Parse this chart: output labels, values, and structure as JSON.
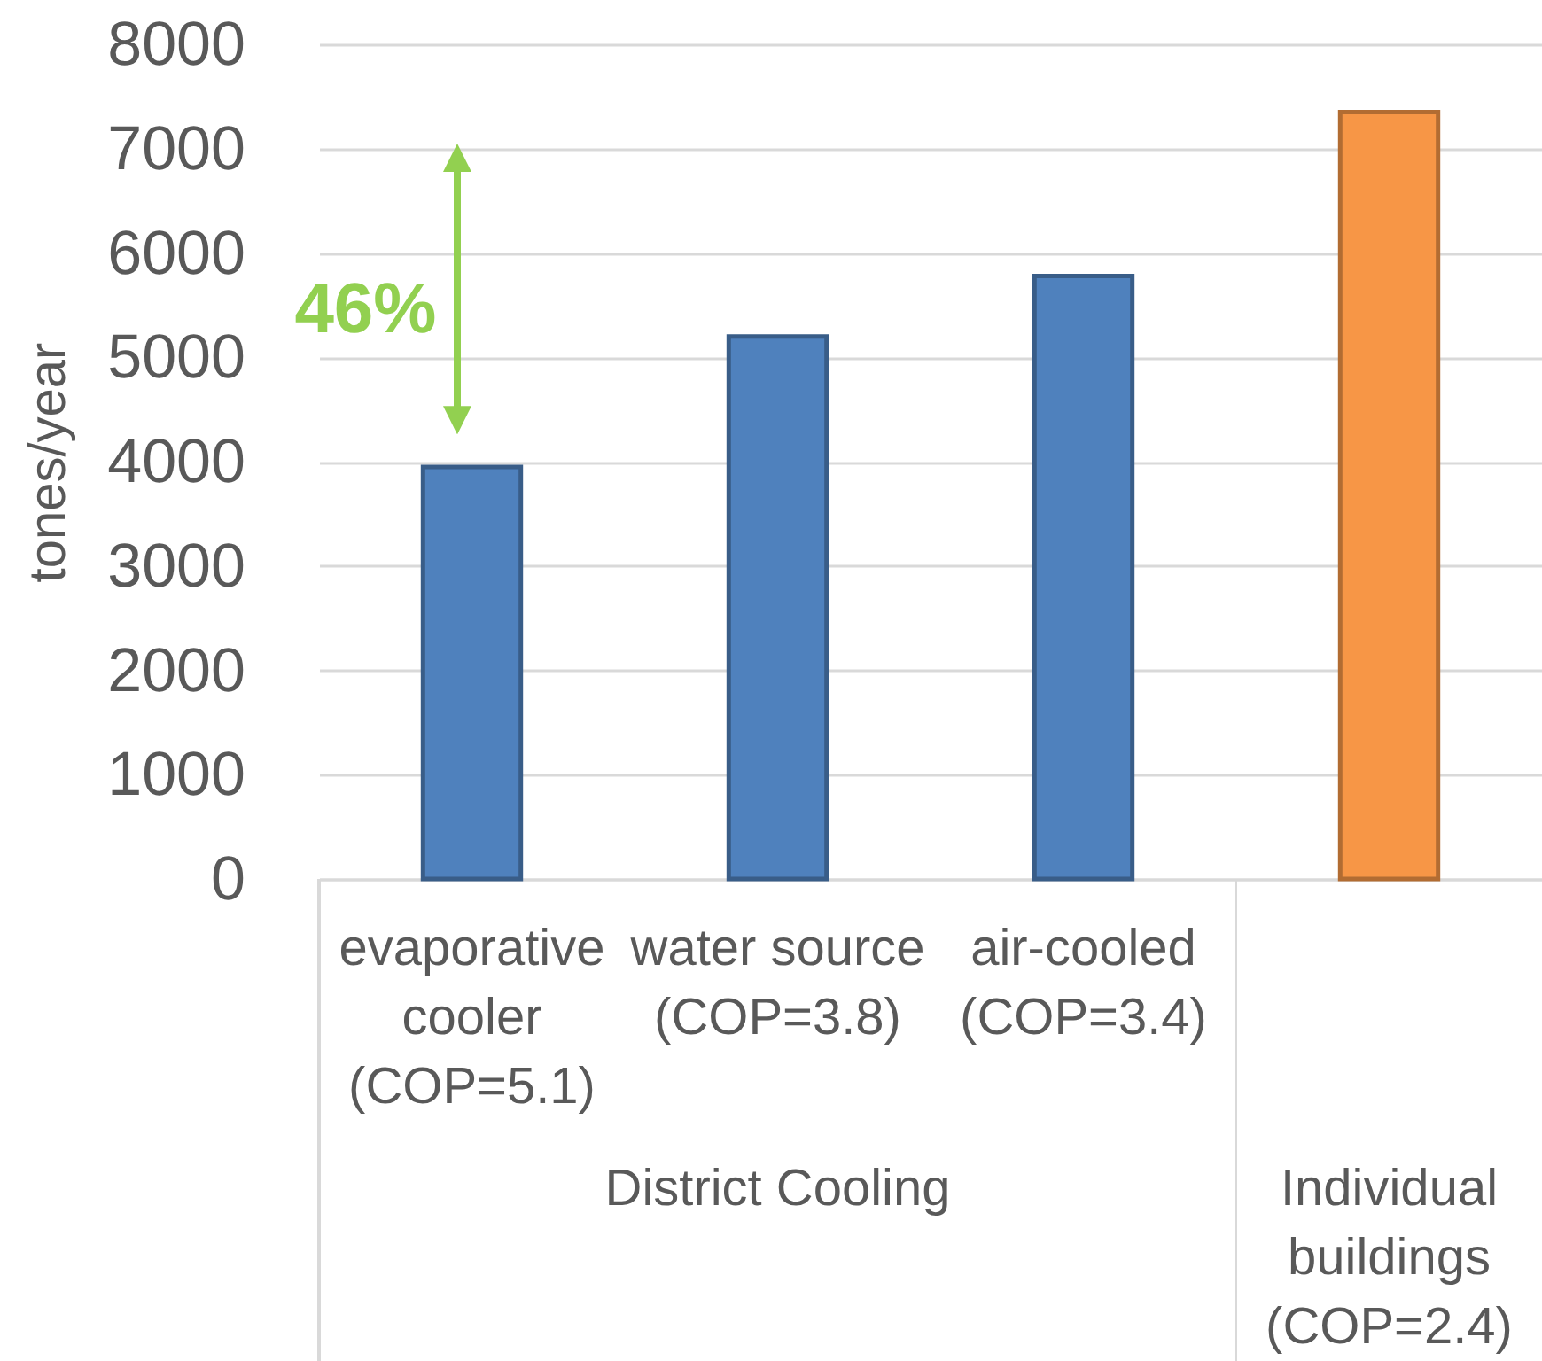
{
  "chart_data": {
    "type": "bar",
    "ylabel": "tones/year",
    "categories": [
      "evaporative cooler (COP=5.1)",
      "water source (COP=3.8)",
      "air-cooled (COP=3.4)",
      null
    ],
    "values": [
      3950,
      5200,
      5780,
      7350
    ],
    "colors": [
      "#4f81bd",
      "#4f81bd",
      "#4f81bd",
      "#f79646"
    ],
    "ylim": [
      0,
      8000
    ],
    "yticks": [
      0,
      1000,
      2000,
      3000,
      4000,
      5000,
      6000,
      7000,
      8000
    ],
    "grid": "y",
    "annotations": [
      "46%",
      "District Cooling",
      "Individual buildings (COP=2.4)"
    ]
  }
}
